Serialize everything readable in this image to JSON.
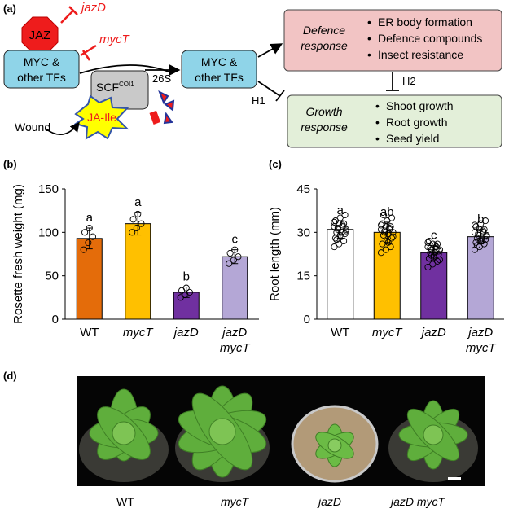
{
  "panel_a": {
    "label": "(a)",
    "jaz": "JAZ",
    "jazd": "jazD",
    "myct": "mycT",
    "myc_left_l1": "MYC &",
    "myc_left_l2": "other TFs",
    "myc_right_l1": "MYC &",
    "myc_right_l2": "other TFs",
    "scf": "SCF",
    "scf_sup": "COI1",
    "s26": "26S",
    "jaile": "JA-Ile",
    "wound": "Wound",
    "h1": "H1",
    "h2": "H2",
    "defence_l1": "Defence",
    "defence_l2": "response",
    "defence_items": [
      "ER body formation",
      "Defence compounds",
      "Insect resistance"
    ],
    "growth_l1": "Growth",
    "growth_l2": "response",
    "growth_items": [
      "Shoot growth",
      "Root growth",
      "Seed  yield"
    ],
    "colors": {
      "defence": "#f2c4c4",
      "growth": "#e3efd9",
      "myc": "#8fd4e8",
      "jaz": "#ee1c1c",
      "scf": "#c9c9c9",
      "jaile": "#ffff00",
      "red_text": "#ee1c1c"
    }
  },
  "panel_b": {
    "label": "(b)"
  },
  "panel_c": {
    "label": "(c)"
  },
  "panel_d": {
    "label": "(d)",
    "plant_labels": [
      "WT",
      "mycT",
      "jazD",
      "jazD mycT"
    ]
  },
  "chart_data": [
    {
      "type": "bar",
      "ylabel": "Rosette fresh weight (mg)",
      "categories": [
        "WT",
        "mycT",
        "jazD",
        "jazD mycT"
      ],
      "values": [
        93,
        110,
        31,
        72
      ],
      "errors": [
        12,
        13,
        6,
        8
      ],
      "letters": [
        "a",
        "a",
        "b",
        "c"
      ],
      "colors": [
        "#e46c0a",
        "#ffc000",
        "#7030a0",
        "#b4a7d6"
      ],
      "ylim": [
        0,
        150
      ],
      "yticks": [
        0,
        50,
        100,
        150
      ],
      "points": [
        [
          80,
          88,
          95,
          100,
          105
        ],
        [
          100,
          105,
          110,
          115,
          121
        ],
        [
          25,
          28,
          31,
          33,
          36
        ],
        [
          64,
          68,
          72,
          76,
          80
        ]
      ]
    },
    {
      "type": "bar",
      "ylabel": "Root length (mm)",
      "categories": [
        "WT",
        "mycT",
        "jazD",
        "jazD mycT"
      ],
      "values": [
        31,
        30,
        23,
        28.5
      ],
      "errors": [
        3,
        3.5,
        2.5,
        2.5
      ],
      "letters": [
        "a",
        "ab",
        "c",
        "b"
      ],
      "colors": [
        "#ffffff",
        "#ffc000",
        "#7030a0",
        "#b4a7d6"
      ],
      "ylim": [
        0,
        45
      ],
      "yticks": [
        0,
        15,
        30,
        45
      ],
      "points": [
        [
          25,
          26,
          27,
          28,
          29,
          29.5,
          30,
          30,
          31,
          31,
          32,
          32,
          33,
          33,
          34,
          35,
          36,
          27.5,
          28.5,
          30.5,
          31.5,
          32.5,
          33.5
        ],
        [
          23,
          24,
          25,
          26,
          27,
          28,
          29,
          29.5,
          30,
          30,
          31,
          31,
          32,
          32,
          33,
          34,
          35,
          36,
          26.5,
          28.5,
          30.5,
          31.5,
          32.5
        ],
        [
          18,
          19,
          20,
          21,
          22,
          22.5,
          23,
          23,
          24,
          24,
          25,
          25,
          26,
          26,
          27,
          21.5,
          23.5,
          24.5,
          25.5,
          20.5,
          22,
          24.2,
          26.5
        ],
        [
          24,
          25,
          26,
          26.5,
          27,
          27.5,
          28,
          28,
          29,
          29,
          30,
          30,
          31,
          31,
          32,
          33,
          34,
          25.5,
          27.2,
          28.6,
          29.6,
          30.5,
          32.5
        ]
      ]
    }
  ]
}
